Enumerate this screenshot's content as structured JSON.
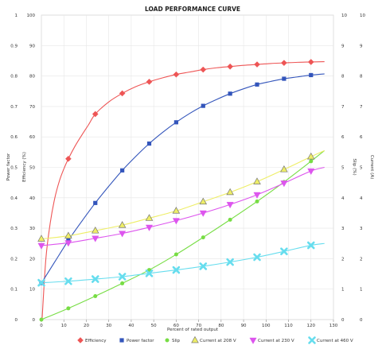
{
  "chart_data": {
    "type": "line",
    "title": "LOAD PERFORMANCE CURVE",
    "xlabel": "Percent of rated output",
    "ylabels": {
      "power_factor": "Power factor",
      "efficiency": "Efficiency (%)",
      "slip": "Slip (%)",
      "current": "Current (A)"
    },
    "x_ticks": [
      0,
      10,
      20,
      30,
      40,
      50,
      60,
      70,
      80,
      90,
      100,
      110,
      120,
      130
    ],
    "xlim": [
      0,
      130
    ],
    "axes": {
      "power_factor": {
        "range": [
          0,
          1
        ],
        "ticks": [
          "0",
          "0.1",
          "0.2",
          "0.3",
          "0.4",
          "0.5",
          "0.6",
          "0.7",
          "0.8",
          "0.9",
          "1"
        ]
      },
      "efficiency": {
        "range": [
          0,
          100
        ],
        "ticks": [
          "0",
          "10",
          "20",
          "30",
          "40",
          "50",
          "60",
          "70",
          "80",
          "90",
          "100"
        ]
      },
      "slip": {
        "range": [
          0,
          10
        ],
        "ticks": [
          "0",
          "1",
          "2",
          "3",
          "4",
          "5",
          "6",
          "7",
          "8",
          "9",
          "10"
        ]
      },
      "current": {
        "range": [
          0,
          10
        ],
        "ticks": [
          "0",
          "1",
          "2",
          "3",
          "4",
          "5",
          "6",
          "7",
          "8",
          "9",
          "10"
        ]
      }
    },
    "grid": true,
    "legend_position": "bottom",
    "series": [
      {
        "name": "Efficiency",
        "axis": "efficiency",
        "marker": "diamond",
        "color": "#ee5555",
        "points": [
          [
            12,
            52.8
          ],
          [
            24,
            67.5
          ],
          [
            36,
            74.3
          ],
          [
            48,
            78.1
          ],
          [
            60,
            80.5
          ],
          [
            72,
            82.1
          ],
          [
            84,
            83.1
          ],
          [
            96,
            83.8
          ],
          [
            108,
            84.3
          ],
          [
            120,
            84.6
          ]
        ],
        "curve": [
          [
            0.3,
            0
          ],
          [
            2,
            20
          ],
          [
            4,
            32
          ],
          [
            6,
            40
          ],
          [
            8,
            45.5
          ],
          [
            10,
            49.5
          ],
          [
            12,
            52.8
          ],
          [
            15,
            57
          ],
          [
            18,
            60.6
          ],
          [
            21,
            64
          ],
          [
            24,
            67.5
          ],
          [
            30,
            71.5
          ],
          [
            36,
            74.3
          ],
          [
            42,
            76.5
          ],
          [
            48,
            78.1
          ],
          [
            54,
            79.4
          ],
          [
            60,
            80.5
          ],
          [
            66,
            81.3
          ],
          [
            72,
            82.1
          ],
          [
            78,
            82.7
          ],
          [
            84,
            83.1
          ],
          [
            90,
            83.5
          ],
          [
            96,
            83.8
          ],
          [
            102,
            84.1
          ],
          [
            108,
            84.3
          ],
          [
            114,
            84.5
          ],
          [
            120,
            84.6
          ],
          [
            126,
            84.7
          ]
        ]
      },
      {
        "name": "Power factor",
        "axis": "power_factor",
        "marker": "square",
        "color": "#3355bb",
        "points": [
          [
            0,
            0.12
          ],
          [
            12,
            0.26
          ],
          [
            24,
            0.383
          ],
          [
            36,
            0.49
          ],
          [
            48,
            0.578
          ],
          [
            60,
            0.648
          ],
          [
            72,
            0.702
          ],
          [
            84,
            0.742
          ],
          [
            96,
            0.772
          ],
          [
            108,
            0.791
          ],
          [
            120,
            0.803
          ]
        ],
        "curve": [
          [
            0,
            0.12
          ],
          [
            6,
            0.19
          ],
          [
            12,
            0.26
          ],
          [
            18,
            0.323
          ],
          [
            24,
            0.383
          ],
          [
            30,
            0.438
          ],
          [
            36,
            0.49
          ],
          [
            42,
            0.536
          ],
          [
            48,
            0.578
          ],
          [
            54,
            0.615
          ],
          [
            60,
            0.648
          ],
          [
            66,
            0.677
          ],
          [
            72,
            0.702
          ],
          [
            78,
            0.723
          ],
          [
            84,
            0.742
          ],
          [
            90,
            0.758
          ],
          [
            96,
            0.772
          ],
          [
            102,
            0.782
          ],
          [
            108,
            0.791
          ],
          [
            114,
            0.797
          ],
          [
            120,
            0.803
          ],
          [
            126,
            0.807
          ]
        ]
      },
      {
        "name": "Slip",
        "axis": "slip",
        "marker": "circle",
        "color": "#77dd44",
        "points": [
          [
            0,
            0
          ],
          [
            12,
            0.37
          ],
          [
            24,
            0.77
          ],
          [
            36,
            1.19
          ],
          [
            48,
            1.63
          ],
          [
            60,
            2.14
          ],
          [
            72,
            2.7
          ],
          [
            84,
            3.28
          ],
          [
            96,
            3.88
          ],
          [
            108,
            4.52
          ],
          [
            120,
            5.2
          ]
        ],
        "curve": [
          [
            0,
            0
          ],
          [
            12,
            0.37
          ],
          [
            24,
            0.77
          ],
          [
            36,
            1.19
          ],
          [
            48,
            1.63
          ],
          [
            60,
            2.14
          ],
          [
            72,
            2.7
          ],
          [
            84,
            3.28
          ],
          [
            96,
            3.88
          ],
          [
            108,
            4.52
          ],
          [
            120,
            5.2
          ],
          [
            126,
            5.55
          ]
        ]
      },
      {
        "name": "Current at 208 V",
        "axis": "current",
        "marker": "triangle-up",
        "color": "#eeee66",
        "points": [
          [
            0,
            2.65
          ],
          [
            12,
            2.75
          ],
          [
            24,
            2.92
          ],
          [
            36,
            3.1
          ],
          [
            48,
            3.33
          ],
          [
            60,
            3.57
          ],
          [
            72,
            3.87
          ],
          [
            84,
            4.18
          ],
          [
            96,
            4.53
          ],
          [
            108,
            4.93
          ],
          [
            120,
            5.35
          ]
        ],
        "curve": [
          [
            0,
            2.65
          ],
          [
            12,
            2.75
          ],
          [
            24,
            2.92
          ],
          [
            36,
            3.1
          ],
          [
            48,
            3.33
          ],
          [
            60,
            3.57
          ],
          [
            72,
            3.87
          ],
          [
            84,
            4.18
          ],
          [
            96,
            4.53
          ],
          [
            108,
            4.93
          ],
          [
            120,
            5.35
          ],
          [
            126,
            5.55
          ]
        ]
      },
      {
        "name": "Current at 230 V",
        "axis": "current",
        "marker": "triangle-down",
        "color": "#dd55ee",
        "points": [
          [
            0,
            2.43
          ],
          [
            12,
            2.52
          ],
          [
            24,
            2.67
          ],
          [
            36,
            2.83
          ],
          [
            48,
            3.03
          ],
          [
            60,
            3.25
          ],
          [
            72,
            3.5
          ],
          [
            84,
            3.78
          ],
          [
            96,
            4.1
          ],
          [
            108,
            4.48
          ],
          [
            120,
            4.88
          ]
        ],
        "curve": [
          [
            0,
            2.43
          ],
          [
            12,
            2.52
          ],
          [
            24,
            2.67
          ],
          [
            36,
            2.83
          ],
          [
            48,
            3.03
          ],
          [
            60,
            3.25
          ],
          [
            72,
            3.5
          ],
          [
            84,
            3.78
          ],
          [
            96,
            4.1
          ],
          [
            108,
            4.48
          ],
          [
            120,
            4.88
          ],
          [
            126,
            5.0
          ]
        ]
      },
      {
        "name": "Current at 460 V",
        "axis": "current",
        "marker": "cross",
        "color": "#66ddee",
        "points": [
          [
            0,
            1.21
          ],
          [
            12,
            1.26
          ],
          [
            24,
            1.33
          ],
          [
            36,
            1.41
          ],
          [
            48,
            1.52
          ],
          [
            60,
            1.63
          ],
          [
            72,
            1.75
          ],
          [
            84,
            1.89
          ],
          [
            96,
            2.05
          ],
          [
            108,
            2.24
          ],
          [
            120,
            2.44
          ]
        ],
        "curve": [
          [
            0,
            1.21
          ],
          [
            12,
            1.26
          ],
          [
            24,
            1.33
          ],
          [
            36,
            1.41
          ],
          [
            48,
            1.52
          ],
          [
            60,
            1.63
          ],
          [
            72,
            1.75
          ],
          [
            84,
            1.89
          ],
          [
            96,
            2.05
          ],
          [
            108,
            2.24
          ],
          [
            120,
            2.44
          ],
          [
            126,
            2.5
          ]
        ]
      }
    ]
  }
}
